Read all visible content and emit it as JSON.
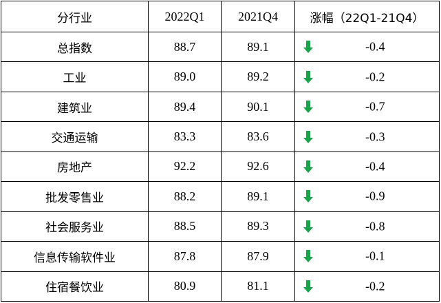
{
  "header": {
    "industry": "分行业",
    "q2022q1": "2022Q1",
    "q2021q4": "2021Q4",
    "change": "涨幅（22Q1-21Q4）"
  },
  "accent_color": "#1aa34a",
  "rows": [
    {
      "industry": "总指数",
      "q2022q1": "88.7",
      "q2021q4": "89.1",
      "direction_icon": "down-arrow-icon",
      "change": "-0.4"
    },
    {
      "industry": "工业",
      "q2022q1": "89.0",
      "q2021q4": "89.2",
      "direction_icon": "down-arrow-icon",
      "change": "-0.2"
    },
    {
      "industry": "建筑业",
      "q2022q1": "89.4",
      "q2021q4": "90.1",
      "direction_icon": "down-arrow-icon",
      "change": "-0.7"
    },
    {
      "industry": "交通运输",
      "q2022q1": "83.3",
      "q2021q4": "83.6",
      "direction_icon": "down-arrow-icon",
      "change": "-0.3"
    },
    {
      "industry": "房地产",
      "q2022q1": "92.2",
      "q2021q4": "92.6",
      "direction_icon": "down-arrow-icon",
      "change": "-0.4"
    },
    {
      "industry": "批发零售业",
      "q2022q1": "88.2",
      "q2021q4": "89.1",
      "direction_icon": "down-arrow-icon",
      "change": "-0.9"
    },
    {
      "industry": "社会服务业",
      "q2022q1": "88.5",
      "q2021q4": "89.3",
      "direction_icon": "down-arrow-icon",
      "change": "-0.8"
    },
    {
      "industry": "信息传输软件业",
      "q2022q1": "87.8",
      "q2021q4": "87.9",
      "direction_icon": "down-arrow-icon",
      "change": "-0.1"
    },
    {
      "industry": "住宿餐饮业",
      "q2022q1": "80.9",
      "q2021q4": "81.1",
      "direction_icon": "down-arrow-icon",
      "change": "-0.2"
    }
  ]
}
